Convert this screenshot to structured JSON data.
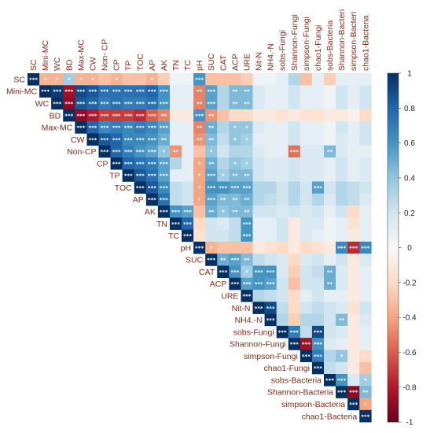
{
  "chart_data": {
    "type": "heatmap",
    "layout": "upper-triangular correlation matrix",
    "variables": [
      "SC",
      "Mini-MC",
      "WC",
      "BD",
      "Max-MC",
      "CW",
      "Non-CP",
      "CP",
      "TP",
      "TOC",
      "AP",
      "AK",
      "TN",
      "TC",
      "pH",
      "SUC",
      "CAT",
      "ACP",
      "URE",
      "Nit-N",
      "NH4.-N",
      "sobs-Fungi",
      "Shannon-Fungi",
      "simpson-Fungi",
      "chao1-Fungi",
      "sobs-Bacteria",
      "Shannon-Bacteria",
      "simpson-Bacteria",
      "chao1-Bacteria"
    ],
    "column_labels": [
      "SC",
      "Mini-MC",
      "WC",
      "BD",
      "Max-MC",
      "CW",
      "Non- CP",
      "CP",
      "TP",
      "TOC",
      "AP",
      "AK",
      "TN",
      "TC",
      "pH",
      "SUC",
      "CAT",
      "ACP",
      "URE",
      "Nit-N",
      "NH4.-N",
      "sobs-Fungi",
      "Shannon-Fungi",
      "simpson-Fungi",
      "chao1-Fungi",
      "sobs-Bacteria",
      "Shannon-Bacteri",
      "simpson-Bacteri",
      "chao1-Bacteria"
    ],
    "row_labels": [
      "SC",
      "Mini-MC",
      "WC",
      "BD",
      "Max-MC",
      "CW",
      "Non-CP",
      "CP",
      "TP",
      "TOC",
      "AP",
      "AK",
      "TN",
      "TC",
      "pH",
      "SUC",
      "CAT",
      "ACP",
      "URE",
      "Nit-N",
      "NH4.-N",
      "sobs-Fungi",
      "Shannon-Fungi",
      "simpson-Fungi",
      "chao1-Fungi",
      "sobs-Bacteria",
      "Shannon-Bacteria",
      "simpson-Bacteria",
      "chao1-Bacteria"
    ],
    "colorbar": {
      "range": [
        -1,
        1
      ],
      "ticks": [
        1,
        0.8,
        0.6,
        0.4,
        0.2,
        0,
        -0.2,
        -0.4,
        -0.6,
        -0.8,
        -1
      ],
      "tick_labels": [
        "1",
        "0.8",
        "0.6",
        "0.4",
        "0.2",
        "0",
        "-0.2",
        "-0.4",
        "-0.6",
        "-0.8",
        "-1"
      ],
      "colors": {
        "negative": "#67001f",
        "neutral": "#f7f7f7",
        "positive": "#053061"
      }
    },
    "significance_marks": [
      "*",
      "**",
      "***"
    ],
    "diagonal_value": 1,
    "matrix": [
      [
        1,
        -0.35,
        -0.35,
        0.35,
        -0.35,
        -0.35,
        -0.3,
        -0.35,
        -0.3,
        -0.3,
        -0.35,
        -0.25,
        0.05,
        0.05,
        0.6,
        -0.3,
        -0.3,
        -0.3,
        -0.25,
        0.05,
        0.05,
        0.1,
        0.3,
        -0.3,
        0.1,
        -0.25,
        0.1,
        0.1,
        0.1
      ],
      [
        null,
        1,
        0.95,
        -0.85,
        0.9,
        0.85,
        0.75,
        0.75,
        0.75,
        0.75,
        0.8,
        0.6,
        0.1,
        0.1,
        -0.5,
        0.55,
        0.3,
        0.45,
        0.45,
        0.15,
        0.1,
        0.1,
        0.2,
        0.1,
        0.1,
        0.05,
        0.2,
        0.1,
        0.2
      ],
      [
        null,
        null,
        1,
        -0.9,
        0.85,
        0.8,
        0.7,
        0.75,
        0.7,
        0.7,
        0.75,
        0.6,
        0.1,
        0.1,
        -0.5,
        0.55,
        0.3,
        0.45,
        0.45,
        0.15,
        0.1,
        0.1,
        0.2,
        0.1,
        0.1,
        0.05,
        0.2,
        0.1,
        0.2
      ],
      [
        null,
        null,
        null,
        1,
        -0.9,
        -0.8,
        -0.7,
        -0.7,
        -0.7,
        -0.75,
        -0.6,
        -0.5,
        -0.1,
        -0.1,
        0.6,
        -0.45,
        -0.3,
        -0.2,
        -0.2,
        -0.1,
        -0.1,
        -0.15,
        -0.1,
        -0.15,
        -0.15,
        -0.1,
        -0.1,
        -0.05,
        -0.2
      ],
      [
        null,
        null,
        null,
        null,
        1,
        0.8,
        0.65,
        0.7,
        0.65,
        0.7,
        0.65,
        0.55,
        0.1,
        0.1,
        -0.5,
        0.5,
        0.3,
        0.4,
        0.4,
        0.15,
        0.1,
        0.1,
        0.2,
        0.1,
        0.1,
        0.05,
        0.2,
        0.1,
        0.2
      ],
      [
        null,
        null,
        null,
        null,
        null,
        1,
        0.85,
        0.8,
        0.65,
        0.65,
        0.6,
        0.5,
        0.1,
        0.1,
        -0.45,
        0.45,
        0.25,
        0.4,
        0.35,
        0.1,
        0.1,
        0.1,
        0.2,
        0.1,
        0.1,
        0.05,
        0.15,
        0.1,
        0.2
      ],
      [
        null,
        null,
        null,
        null,
        null,
        null,
        1,
        0.8,
        0.7,
        0.6,
        0.55,
        0.4,
        -0.45,
        0.1,
        -0.3,
        0.4,
        0.2,
        0.3,
        0.3,
        0.15,
        0.1,
        0.1,
        -0.55,
        0.15,
        0.15,
        0.45,
        0.15,
        0.1,
        0.1
      ],
      [
        null,
        null,
        null,
        null,
        null,
        null,
        null,
        1,
        0.8,
        0.75,
        0.7,
        0.55,
        0.3,
        0.1,
        -0.4,
        0.5,
        0.3,
        0.4,
        0.35,
        0.2,
        0.15,
        0.15,
        0.2,
        0.15,
        0.15,
        0.1,
        0.2,
        0.1,
        0.15
      ],
      [
        null,
        null,
        null,
        null,
        null,
        null,
        null,
        null,
        1,
        0.85,
        0.75,
        0.55,
        0.1,
        0.1,
        -0.4,
        0.55,
        0.35,
        0.45,
        0.45,
        0.2,
        0.15,
        0.15,
        0.2,
        0.15,
        0.15,
        0.1,
        0.2,
        0.1,
        0.15
      ],
      [
        null,
        null,
        null,
        null,
        null,
        null,
        null,
        null,
        null,
        1,
        0.85,
        0.65,
        0.25,
        0.2,
        -0.4,
        0.6,
        0.6,
        0.55,
        0.55,
        0.3,
        0.3,
        0.2,
        0.3,
        0.2,
        0.55,
        0.2,
        0.3,
        0.25,
        0.2
      ],
      [
        null,
        null,
        null,
        null,
        null,
        null,
        null,
        null,
        null,
        null,
        1,
        0.75,
        0.25,
        0.2,
        -0.4,
        0.55,
        0.45,
        0.45,
        0.5,
        0.3,
        0.25,
        0.2,
        0.3,
        0.2,
        0.3,
        0.15,
        0.3,
        0.25,
        0.15
      ],
      [
        null,
        null,
        null,
        null,
        null,
        null,
        null,
        null,
        null,
        null,
        null,
        1,
        0.6,
        0.55,
        -0.3,
        0.5,
        0.4,
        0.45,
        0.45,
        0.2,
        0.2,
        0.15,
        0.2,
        0.15,
        0.2,
        0.1,
        0.2,
        -0.2,
        0.1
      ],
      [
        null,
        null,
        null,
        null,
        null,
        null,
        null,
        null,
        null,
        null,
        null,
        null,
        1,
        0.8,
        -0.2,
        0.2,
        0.15,
        0.25,
        0.6,
        0.1,
        0.1,
        0.2,
        -0.1,
        0.15,
        0.15,
        0.05,
        0.1,
        -0.15,
        0.1
      ],
      [
        null,
        null,
        null,
        null,
        null,
        null,
        null,
        null,
        null,
        null,
        null,
        null,
        null,
        1,
        -0.15,
        0.2,
        0.2,
        0.25,
        0.6,
        0.1,
        0.1,
        0.2,
        -0.1,
        0.15,
        0.1,
        0.05,
        0.1,
        -0.1,
        0.1
      ],
      [
        null,
        null,
        null,
        null,
        null,
        null,
        null,
        null,
        null,
        null,
        null,
        null,
        null,
        null,
        1,
        -0.35,
        -0.3,
        -0.3,
        -0.3,
        -0.1,
        -0.15,
        -0.2,
        -0.1,
        -0.2,
        -0.15,
        -0.1,
        0.65,
        -0.75,
        0.65
      ],
      [
        null,
        null,
        null,
        null,
        null,
        null,
        null,
        null,
        null,
        null,
        null,
        null,
        null,
        null,
        null,
        1,
        0.5,
        0.55,
        0.45,
        0.25,
        0.2,
        0.15,
        -0.2,
        0.15,
        0.2,
        0.1,
        0.2,
        -0.1,
        0.15
      ],
      [
        null,
        null,
        null,
        null,
        null,
        null,
        null,
        null,
        null,
        null,
        null,
        null,
        null,
        null,
        null,
        null,
        1,
        0.6,
        0.35,
        0.6,
        0.6,
        0.15,
        -0.25,
        0.2,
        0.25,
        0.5,
        0.15,
        -0.1,
        0.1
      ],
      [
        null,
        null,
        null,
        null,
        null,
        null,
        null,
        null,
        null,
        null,
        null,
        null,
        null,
        null,
        null,
        null,
        null,
        1,
        0.55,
        0.6,
        0.55,
        0.2,
        -0.3,
        0.2,
        0.2,
        0.5,
        0.15,
        -0.1,
        0.1
      ],
      [
        null,
        null,
        null,
        null,
        null,
        null,
        null,
        null,
        null,
        null,
        null,
        null,
        null,
        null,
        null,
        null,
        null,
        null,
        1,
        0.3,
        0.25,
        0.2,
        -0.2,
        0.1,
        0.2,
        0.1,
        0.1,
        -0.1,
        0.1
      ],
      [
        null,
        null,
        null,
        null,
        null,
        null,
        null,
        null,
        null,
        null,
        null,
        null,
        null,
        null,
        null,
        null,
        null,
        null,
        null,
        1,
        0.9,
        0.25,
        -0.2,
        0.2,
        0.25,
        0.2,
        0.15,
        -0.15,
        0.2
      ],
      [
        null,
        null,
        null,
        null,
        null,
        null,
        null,
        null,
        null,
        null,
        null,
        null,
        null,
        null,
        null,
        null,
        null,
        null,
        null,
        null,
        1,
        0.3,
        -0.25,
        0.3,
        0.3,
        0.2,
        0.45,
        -0.1,
        0.15
      ],
      [
        null,
        null,
        null,
        null,
        null,
        null,
        null,
        null,
        null,
        null,
        null,
        null,
        null,
        null,
        null,
        null,
        null,
        null,
        null,
        null,
        null,
        1,
        0.7,
        0.25,
        0.9,
        0.2,
        0.15,
        -0.1,
        0.1
      ],
      [
        null,
        null,
        null,
        null,
        null,
        null,
        null,
        null,
        null,
        null,
        null,
        null,
        null,
        null,
        null,
        null,
        null,
        null,
        null,
        null,
        null,
        null,
        1,
        -0.85,
        0.6,
        0.15,
        0.1,
        -0.1,
        0.1
      ],
      [
        null,
        null,
        null,
        null,
        null,
        null,
        null,
        null,
        null,
        null,
        null,
        null,
        null,
        null,
        null,
        null,
        null,
        null,
        null,
        null,
        null,
        null,
        null,
        1,
        0.7,
        0.3,
        0.4,
        -0.1,
        -0.2
      ],
      [
        null,
        null,
        null,
        null,
        null,
        null,
        null,
        null,
        null,
        null,
        null,
        null,
        null,
        null,
        null,
        null,
        null,
        null,
        null,
        null,
        null,
        null,
        null,
        null,
        1,
        0.25,
        0.2,
        -0.1,
        -0.3
      ],
      [
        null,
        null,
        null,
        null,
        null,
        null,
        null,
        null,
        null,
        null,
        null,
        null,
        null,
        null,
        null,
        null,
        null,
        null,
        null,
        null,
        null,
        null,
        null,
        null,
        null,
        1,
        0.6,
        0.15,
        0.35
      ],
      [
        null,
        null,
        null,
        null,
        null,
        null,
        null,
        null,
        null,
        null,
        null,
        null,
        null,
        null,
        null,
        null,
        null,
        null,
        null,
        null,
        null,
        null,
        null,
        null,
        null,
        null,
        1,
        -0.9,
        0.45
      ],
      [
        null,
        null,
        null,
        null,
        null,
        null,
        null,
        null,
        null,
        null,
        null,
        null,
        null,
        null,
        null,
        null,
        null,
        null,
        null,
        null,
        null,
        null,
        null,
        null,
        null,
        null,
        null,
        1,
        -0.4
      ],
      [
        null,
        null,
        null,
        null,
        null,
        null,
        null,
        null,
        null,
        null,
        null,
        null,
        null,
        null,
        null,
        null,
        null,
        null,
        null,
        null,
        null,
        null,
        null,
        null,
        null,
        null,
        null,
        null,
        1
      ]
    ]
  }
}
